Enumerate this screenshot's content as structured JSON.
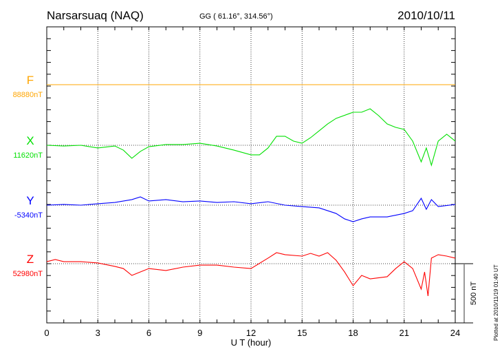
{
  "header": {
    "station": "Narsarsuaq (NAQ)",
    "coords": "GG ( 61.16°, 314.56°)",
    "date": "2010/10/11"
  },
  "footer": {
    "plotted": "Plotted at 2010/11/19 01:40 UT",
    "scale_label": "500 nT"
  },
  "chart_data": {
    "type": "line",
    "title": "Narsarsuaq (NAQ) 2010/10/11",
    "xlabel": "U T (hour)",
    "ylabel": "",
    "xlim": [
      0,
      24
    ],
    "xticks": [
      0,
      3,
      6,
      9,
      12,
      15,
      18,
      21,
      24
    ],
    "xtick_labels": [
      "0",
      "3",
      "6",
      "9",
      "12",
      "15",
      "18",
      "21",
      "24"
    ],
    "scale_nT": 500,
    "grid": true,
    "series": [
      {
        "name": "F",
        "baseline_label": "88880nT",
        "color": "#FFA500",
        "x": [
          0,
          24
        ],
        "values": [
          0,
          0
        ]
      },
      {
        "name": "X",
        "baseline_label": "11620nT",
        "color": "#00E000",
        "x": [
          0,
          1,
          2,
          3,
          4,
          4.5,
          5,
          5.5,
          6,
          7,
          8,
          9,
          10,
          11,
          12,
          12.5,
          13,
          13.5,
          14,
          14.5,
          15,
          15.5,
          16,
          16.5,
          17,
          18,
          18.5,
          19,
          19.5,
          20,
          20.5,
          21,
          21.5,
          22,
          22.3,
          22.6,
          23,
          23.5,
          24
        ],
        "values": [
          0,
          -6,
          0,
          -23,
          -6,
          -41,
          -110,
          -52,
          -12,
          6,
          6,
          17,
          -6,
          -41,
          -81,
          -81,
          -23,
          76,
          76,
          35,
          17,
          64,
          122,
          180,
          227,
          279,
          279,
          308,
          250,
          180,
          151,
          134,
          35,
          -140,
          -23,
          -169,
          35,
          93,
          35
        ]
      },
      {
        "name": "Y",
        "baseline_label": "-5340nT",
        "color": "#0000FF",
        "x": [
          0,
          1,
          2,
          3,
          4,
          5,
          5.5,
          6,
          7,
          8,
          9,
          10,
          11,
          12,
          13,
          14,
          15,
          16,
          17,
          17.5,
          18,
          18.5,
          19,
          20,
          21,
          21.5,
          22,
          22.3,
          22.6,
          23,
          24
        ],
        "values": [
          0,
          6,
          0,
          12,
          23,
          47,
          70,
          35,
          47,
          29,
          35,
          23,
          29,
          12,
          29,
          0,
          -12,
          -23,
          -70,
          -116,
          -140,
          -116,
          -99,
          -99,
          -70,
          -47,
          58,
          -35,
          47,
          -12,
          6
        ]
      },
      {
        "name": "Z",
        "baseline_label": "52980nT",
        "color": "#FF0000",
        "x": [
          0,
          0.5,
          1,
          2,
          3,
          4,
          4.5,
          5,
          5.5,
          6,
          7,
          8,
          9,
          10,
          11,
          12,
          13,
          13.5,
          14,
          15,
          15.5,
          16,
          16.5,
          17,
          17.5,
          18,
          18.5,
          19,
          20,
          20.5,
          21,
          21.5,
          22,
          22.2,
          22.4,
          22.6,
          23,
          23.5,
          24
        ],
        "values": [
          17,
          35,
          17,
          17,
          6,
          -23,
          -41,
          -99,
          -70,
          -41,
          -58,
          -29,
          -12,
          -12,
          -29,
          -41,
          47,
          93,
          76,
          64,
          87,
          64,
          93,
          29,
          -70,
          -186,
          -99,
          -128,
          -110,
          -41,
          17,
          -41,
          -215,
          -70,
          -273,
          47,
          76,
          64,
          47
        ]
      }
    ]
  }
}
